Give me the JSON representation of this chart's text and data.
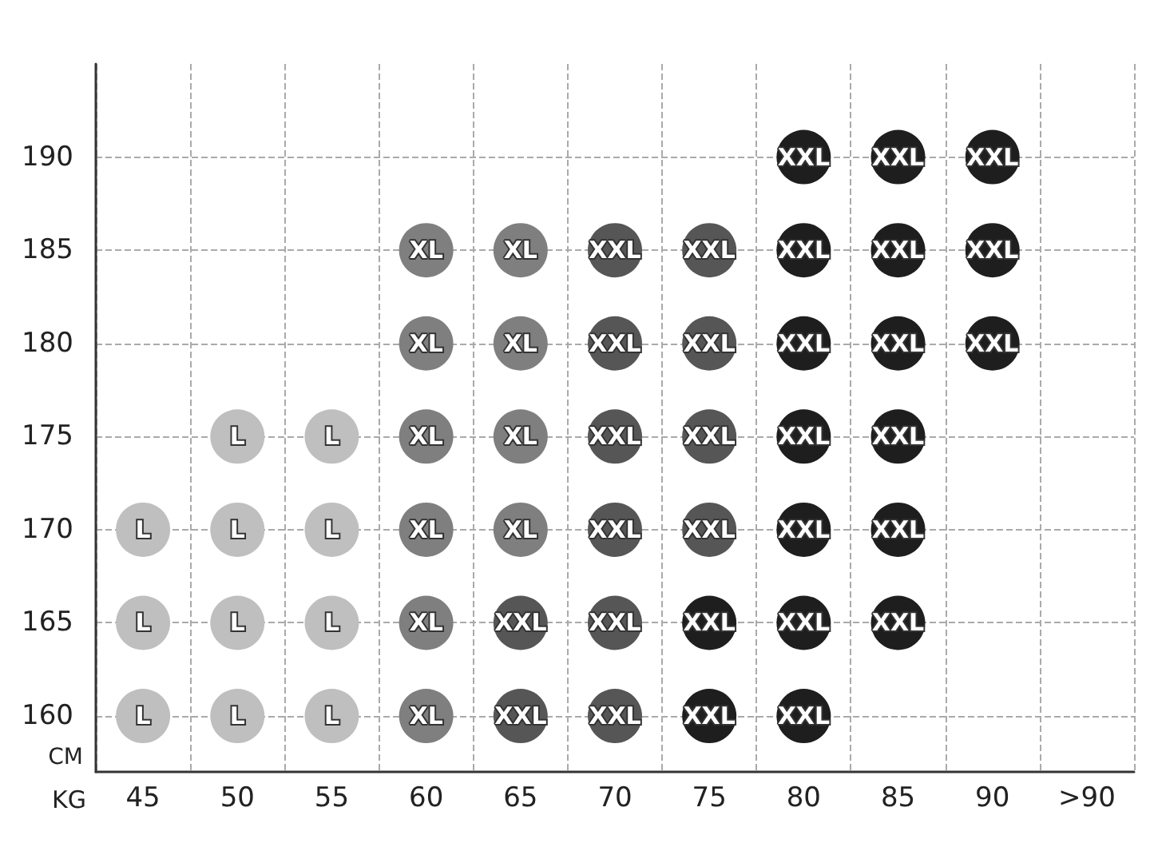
{
  "chart_data": {
    "type": "scatter",
    "xlabel": "KG",
    "ylabel": "CM",
    "categories": [
      "45",
      "50",
      "55",
      "60",
      "65",
      "70",
      "75",
      "80",
      "85",
      "90",
      ">90"
    ],
    "ylim": [
      157,
      195
    ],
    "yticks": [
      160,
      165,
      170,
      175,
      180,
      185,
      190
    ],
    "grid": true,
    "marker": "circle",
    "series": [
      {
        "color": "#bfbfbf",
        "x": [
          "50",
          "55",
          "45",
          "50",
          "55",
          "45",
          "50",
          "55",
          "45",
          "50",
          "55"
        ],
        "values": [
          175,
          175,
          170,
          170,
          170,
          165,
          165,
          165,
          160,
          160,
          160
        ],
        "value_labels": [
          "L",
          "L",
          "L",
          "L",
          "L",
          "L",
          "L",
          "L",
          "L",
          "L",
          "L"
        ]
      },
      {
        "color": "#7f7f7f",
        "x": [
          "60",
          "65",
          "60",
          "65",
          "60",
          "65",
          "60",
          "65",
          "60",
          "60"
        ],
        "values": [
          185,
          185,
          180,
          180,
          175,
          175,
          170,
          170,
          165,
          160
        ],
        "value_labels": [
          "XL",
          "XL",
          "XL",
          "XL",
          "XL",
          "XL",
          "XL",
          "XL",
          "XL",
          "XL"
        ]
      },
      {
        "color": "#565656",
        "x": [
          "70",
          "75",
          "70",
          "75",
          "70",
          "75",
          "70",
          "75",
          "65",
          "70",
          "65",
          "70"
        ],
        "values": [
          185,
          185,
          180,
          180,
          175,
          175,
          170,
          170,
          165,
          165,
          160,
          160
        ],
        "value_labels": [
          "XXL",
          "XXL",
          "XXL",
          "XXL",
          "XXL",
          "XXL",
          "XXL",
          "XXL",
          "XXL",
          "XXL",
          "XXL",
          "XXL"
        ]
      },
      {
        "color": "#1e1e1e",
        "x": [
          "80",
          "85",
          "90",
          "80",
          "85",
          "90",
          "80",
          "85",
          "90",
          "80",
          "85",
          "80",
          "85",
          "75",
          "80",
          "85",
          "75",
          "80"
        ],
        "values": [
          190,
          190,
          190,
          185,
          185,
          185,
          180,
          180,
          180,
          175,
          175,
          170,
          170,
          165,
          165,
          165,
          160,
          160
        ],
        "value_labels": [
          "XXL",
          "XXL",
          "XXL",
          "XXL",
          "XXL",
          "XXL",
          "XXL",
          "XXL",
          "XXL",
          "XXL",
          "XXL",
          "XXL",
          "XXL",
          "XXL",
          "XXL",
          "XXL",
          "XXL",
          "XXL"
        ]
      }
    ]
  }
}
